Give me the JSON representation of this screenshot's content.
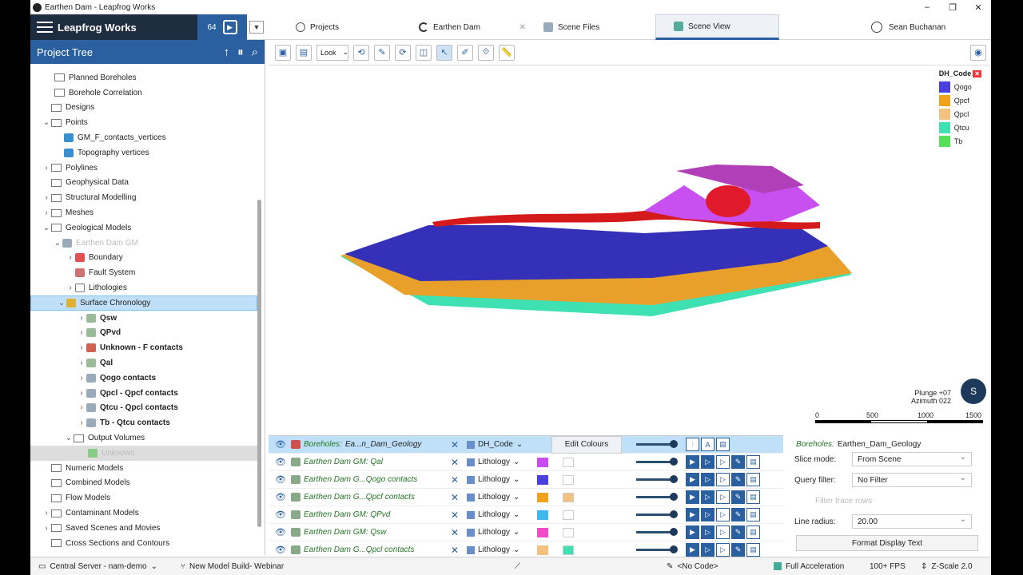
{
  "window": {
    "title": "Earthen Dam - Leapfrog Works",
    "controls": [
      "–",
      "❐",
      "✕"
    ]
  },
  "header": {
    "brand": "Leapfrog Works",
    "counter": "64",
    "tabs": [
      {
        "label": "Projects"
      },
      {
        "label": "Earthen Dam"
      },
      {
        "label": "Scene Files"
      },
      {
        "label": "Scene View"
      }
    ],
    "user": "Sean Buchanan"
  },
  "project_tree": {
    "title": "Project Tree",
    "items": [
      {
        "label": "Planned Boreholes"
      },
      {
        "label": "Borehole Correlation"
      },
      {
        "label": "Designs"
      },
      {
        "label": "Points"
      },
      {
        "label": "GM_F_contacts_vertices"
      },
      {
        "label": "Topography vertices"
      },
      {
        "label": "Polylines"
      },
      {
        "label": "Geophysical Data"
      },
      {
        "label": "Structural Modelling"
      },
      {
        "label": "Meshes"
      },
      {
        "label": "Geological Models"
      },
      {
        "label": "Earthen Dam GM"
      },
      {
        "label": "Boundary"
      },
      {
        "label": "Fault System"
      },
      {
        "label": "Lithologies"
      },
      {
        "label": "Surface Chronology"
      },
      {
        "label": "Qsw"
      },
      {
        "label": "QPvd"
      },
      {
        "label": "Unknown - F contacts"
      },
      {
        "label": "Qal"
      },
      {
        "label": "Qogo contacts"
      },
      {
        "label": "Qpcl - Qpcf contacts"
      },
      {
        "label": "Qtcu - Qpcl contacts"
      },
      {
        "label": "Tb - Qtcu contacts"
      },
      {
        "label": "Output Volumes"
      },
      {
        "label": "Unknown"
      },
      {
        "label": "Numeric Models"
      },
      {
        "label": "Combined Models"
      },
      {
        "label": "Flow Models"
      },
      {
        "label": "Contaminant Models"
      },
      {
        "label": "Saved Scenes and Movies"
      },
      {
        "label": "Cross Sections and Contours"
      }
    ]
  },
  "scene": {
    "look_label": "Look",
    "legend": {
      "title": "DH_Code",
      "items": [
        {
          "label": "Qogo",
          "color": "#4a3fe0"
        },
        {
          "label": "Qpcf",
          "color": "#f0a21a"
        },
        {
          "label": "Qpcl",
          "color": "#f2c27e"
        },
        {
          "label": "Qtcu",
          "color": "#3fe0b2"
        },
        {
          "label": "Tb",
          "color": "#55e05a"
        }
      ]
    },
    "plunge": "Plunge +07",
    "azimuth": "Azimuth 022",
    "scale_labels": [
      "0",
      "500",
      "1000",
      "1500"
    ],
    "compass": "S"
  },
  "layers": {
    "header": {
      "prefix": "Boreholes:",
      "name": "Ea...n_Dam_Geology",
      "column": "DH_Code",
      "edit_label": "Edit Colours"
    },
    "rows": [
      {
        "name": "Earthen Dam GM: Qal",
        "column": "Lithology",
        "c1": "#c84cf0",
        "c2": "#ffffff"
      },
      {
        "name": "Earthen Dam G...Qogo contacts",
        "column": "Lithology",
        "c1": "#4a3fe0",
        "c2": "#ffffff"
      },
      {
        "name": "Earthen Dam G...Qpcf contacts",
        "column": "Lithology",
        "c1": "#f0a21a",
        "c2": "#f2c27e"
      },
      {
        "name": "Earthen Dam GM: QPvd",
        "column": "Lithology",
        "c1": "#3fb8f0",
        "c2": "#ffffff"
      },
      {
        "name": "Earthen Dam GM: Qsw",
        "column": "Lithology",
        "c1": "#f04cc8",
        "c2": "#ffffff"
      },
      {
        "name": "Earthen Dam G...Qpcl contacts",
        "column": "Lithology",
        "c1": "#f2c27e",
        "c2": "#3fe0b2"
      }
    ]
  },
  "properties": {
    "prefix": "Boreholes:",
    "name": "Earthen_Dam_Geology",
    "slice_mode_label": "Slice mode:",
    "slice_mode": "From Scene",
    "query_filter_label": "Query filter:",
    "query_filter": "No Filter",
    "filter_trace": "Filter trace rows",
    "line_radius_label": "Line radius:",
    "line_radius": "20.00",
    "format_button": "Format Display Text"
  },
  "status": {
    "server": "Central Server - nam-demo",
    "build": "New Model Build- Webinar",
    "code": "<No Code>",
    "accel": "Full Acceleration",
    "fps": "100+ FPS",
    "zscale": "Z-Scale 2.0"
  }
}
